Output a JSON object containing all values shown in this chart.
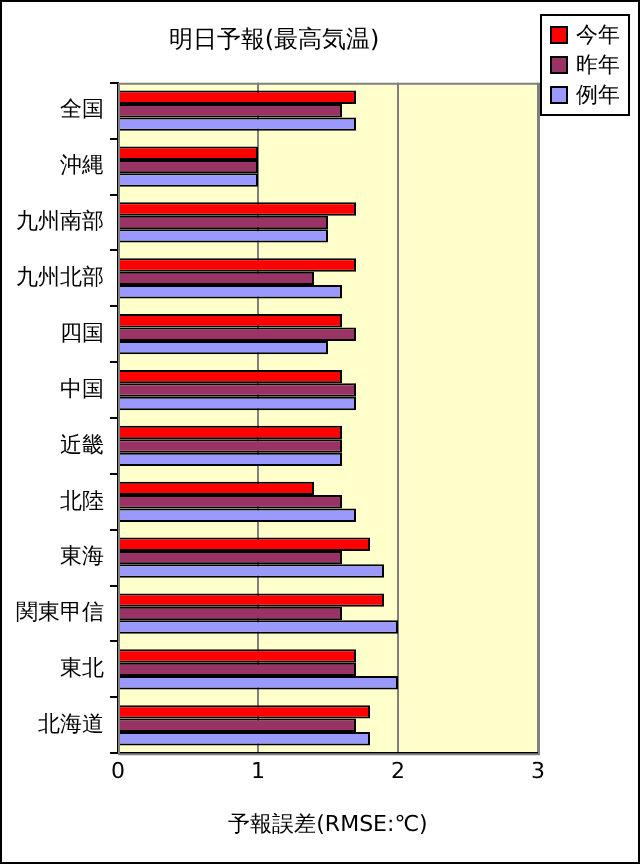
{
  "chart_data": {
    "type": "bar",
    "orientation": "horizontal",
    "title": "明日予報(最高気温)",
    "xlabel": "予報誤差(RMSE:℃)",
    "categories": [
      "全国",
      "沖縄",
      "九州南部",
      "九州北部",
      "四国",
      "中国",
      "近畿",
      "北陸",
      "東海",
      "関東甲信",
      "東北",
      "北海道"
    ],
    "series": [
      {
        "name": "今年",
        "color": "#ff0000",
        "values": [
          1.7,
          1.0,
          1.7,
          1.7,
          1.6,
          1.6,
          1.6,
          1.4,
          1.8,
          1.9,
          1.7,
          1.8
        ]
      },
      {
        "name": "昨年",
        "color": "#993366",
        "values": [
          1.6,
          1.0,
          1.5,
          1.4,
          1.7,
          1.7,
          1.6,
          1.6,
          1.6,
          1.6,
          1.7,
          1.7
        ]
      },
      {
        "name": "例年",
        "color": "#9999ff",
        "values": [
          1.7,
          1.0,
          1.5,
          1.6,
          1.5,
          1.7,
          1.6,
          1.7,
          1.9,
          2.0,
          2.0,
          1.8
        ]
      }
    ],
    "xlim": [
      0,
      3
    ],
    "xticks": [
      0,
      1,
      2,
      3
    ],
    "grid": "x",
    "legend": "top right"
  }
}
